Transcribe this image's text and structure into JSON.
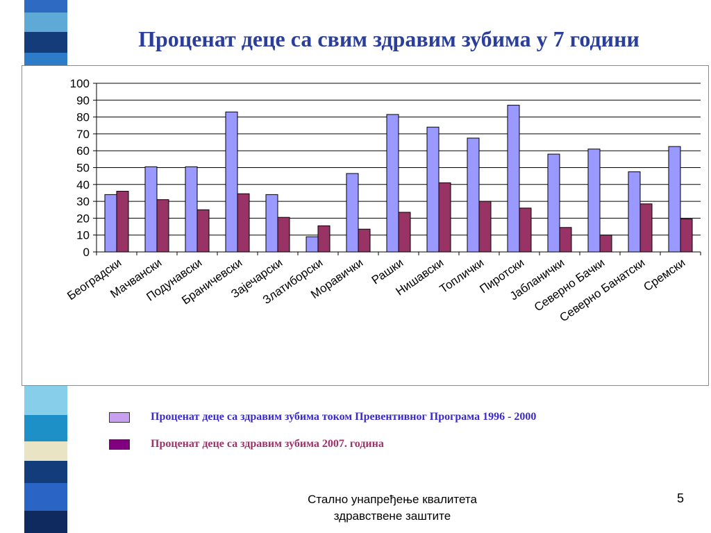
{
  "slide": {
    "title": "Проценат деце са свим здравим зубима у 7 години",
    "footer_line1": "Стално унапређење квалитета",
    "footer_line2": "здравствене заштите",
    "page_number": "5"
  },
  "legend": [
    {
      "label": "Проценат деце са здравим зубима током Превентивног Програма 1996 - 2000",
      "color": "#C8A0F0",
      "text_color": "#3A2ACB"
    },
    {
      "label": "Проценат деце са здравим зубима 2007. година",
      "color": "#800080",
      "text_color": "#A0306A"
    }
  ],
  "chart_data": {
    "type": "bar",
    "categories": [
      "Београдски",
      "Мачвански",
      "Подунавски",
      "Браничевски",
      "Зајечарски",
      "Златиборски",
      "Моравички",
      "Рашки",
      "Нишавски",
      "Топлички",
      "Пиротски",
      "Јабланички",
      "Северно Бачки",
      "Северно Банатски",
      "Сремски"
    ],
    "series": [
      {
        "name": "Проценат деце са здравим зубима током Превентивног Програма 1996 - 2000",
        "color": "#9999FF",
        "values": [
          34,
          50.5,
          50.5,
          83,
          34,
          9,
          46.5,
          81.5,
          74,
          67.5,
          87,
          58,
          61,
          47.5,
          62.5
        ]
      },
      {
        "name": "Проценат деце са здравим зубима 2007. година",
        "color": "#993366",
        "values": [
          36,
          31,
          25,
          34.5,
          20.5,
          15.5,
          13.5,
          23.5,
          41,
          30,
          26,
          14.5,
          10,
          28.5,
          19.5
        ]
      }
    ],
    "yticks": [
      "0",
      "10",
      "20",
      "30",
      "40",
      "50",
      "60",
      "70",
      "80",
      "90",
      "100"
    ],
    "ylim": [
      0,
      100
    ],
    "grid": true
  }
}
